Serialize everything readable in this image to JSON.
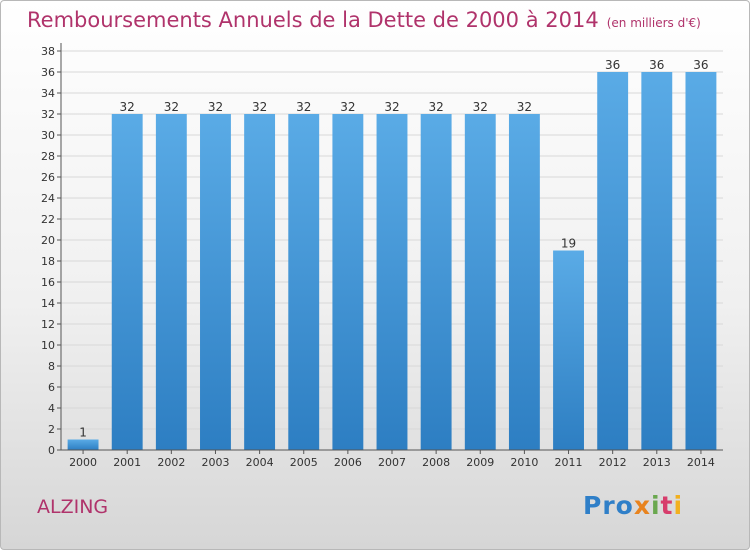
{
  "header": {
    "title": "Remboursements Annuels de la Dette de 2000 à 2014",
    "subtitle": "(en milliers d'€)"
  },
  "footer": {
    "place": "ALZING",
    "logo": "Proxiti"
  },
  "colors": {
    "title": "#b0336b",
    "bar_light": "#5aabe6",
    "bar_dark": "#2d7ec2",
    "grid": "#d8d8d8"
  },
  "chart_data": {
    "type": "bar",
    "title": "Remboursements Annuels de la Dette de 2000 à 2014",
    "subtitle": "(en milliers d'€)",
    "xlabel": "",
    "ylabel": "",
    "categories": [
      "2000",
      "2001",
      "2002",
      "2003",
      "2004",
      "2005",
      "2006",
      "2007",
      "2008",
      "2009",
      "2010",
      "2011",
      "2012",
      "2013",
      "2014"
    ],
    "values": [
      1,
      32,
      32,
      32,
      32,
      32,
      32,
      32,
      32,
      32,
      32,
      19,
      36,
      36,
      36
    ],
    "data_labels": [
      "1",
      "32",
      "32",
      "32",
      "32",
      "32",
      "32",
      "32",
      "32",
      "32",
      "32",
      "19",
      "36",
      "36",
      "36"
    ],
    "ylim": [
      0,
      38
    ],
    "yticks": [
      0,
      2,
      4,
      6,
      8,
      10,
      12,
      14,
      16,
      18,
      20,
      22,
      24,
      26,
      28,
      30,
      32,
      34,
      36,
      38
    ],
    "grid": true,
    "legend": "none"
  }
}
